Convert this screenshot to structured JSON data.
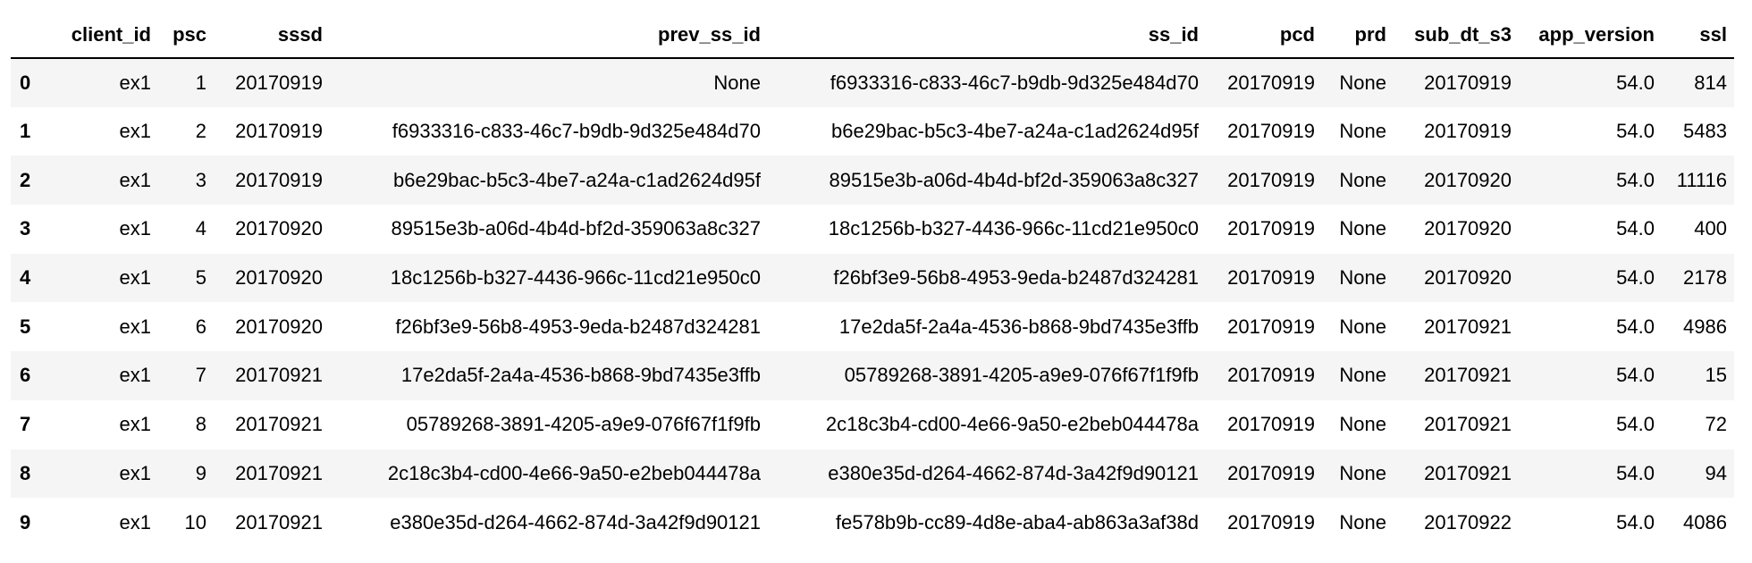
{
  "table": {
    "columns": [
      "",
      "client_id",
      "psc",
      "sssd",
      "prev_ss_id",
      "ss_id",
      "pcd",
      "prd",
      "sub_dt_s3",
      "app_version",
      "ssl"
    ],
    "rows": [
      {
        "index": "0",
        "cells": [
          "ex1",
          "1",
          "20170919",
          "None",
          "f6933316-c833-46c7-b9db-9d325e484d70",
          "20170919",
          "None",
          "20170919",
          "54.0",
          "814"
        ]
      },
      {
        "index": "1",
        "cells": [
          "ex1",
          "2",
          "20170919",
          "f6933316-c833-46c7-b9db-9d325e484d70",
          "b6e29bac-b5c3-4be7-a24a-c1ad2624d95f",
          "20170919",
          "None",
          "20170919",
          "54.0",
          "5483"
        ]
      },
      {
        "index": "2",
        "cells": [
          "ex1",
          "3",
          "20170919",
          "b6e29bac-b5c3-4be7-a24a-c1ad2624d95f",
          "89515e3b-a06d-4b4d-bf2d-359063a8c327",
          "20170919",
          "None",
          "20170920",
          "54.0",
          "11116"
        ]
      },
      {
        "index": "3",
        "cells": [
          "ex1",
          "4",
          "20170920",
          "89515e3b-a06d-4b4d-bf2d-359063a8c327",
          "18c1256b-b327-4436-966c-11cd21e950c0",
          "20170919",
          "None",
          "20170920",
          "54.0",
          "400"
        ]
      },
      {
        "index": "4",
        "cells": [
          "ex1",
          "5",
          "20170920",
          "18c1256b-b327-4436-966c-11cd21e950c0",
          "f26bf3e9-56b8-4953-9eda-b2487d324281",
          "20170919",
          "None",
          "20170920",
          "54.0",
          "2178"
        ]
      },
      {
        "index": "5",
        "cells": [
          "ex1",
          "6",
          "20170920",
          "f26bf3e9-56b8-4953-9eda-b2487d324281",
          "17e2da5f-2a4a-4536-b868-9bd7435e3ffb",
          "20170919",
          "None",
          "20170921",
          "54.0",
          "4986"
        ]
      },
      {
        "index": "6",
        "cells": [
          "ex1",
          "7",
          "20170921",
          "17e2da5f-2a4a-4536-b868-9bd7435e3ffb",
          "05789268-3891-4205-a9e9-076f67f1f9fb",
          "20170919",
          "None",
          "20170921",
          "54.0",
          "15"
        ]
      },
      {
        "index": "7",
        "cells": [
          "ex1",
          "8",
          "20170921",
          "05789268-3891-4205-a9e9-076f67f1f9fb",
          "2c18c3b4-cd00-4e66-9a50-e2beb044478a",
          "20170919",
          "None",
          "20170921",
          "54.0",
          "72"
        ]
      },
      {
        "index": "8",
        "cells": [
          "ex1",
          "9",
          "20170921",
          "2c18c3b4-cd00-4e66-9a50-e2beb044478a",
          "e380e35d-d264-4662-874d-3a42f9d90121",
          "20170919",
          "None",
          "20170921",
          "54.0",
          "94"
        ]
      },
      {
        "index": "9",
        "cells": [
          "ex1",
          "10",
          "20170921",
          "e380e35d-d264-4662-874d-3a42f9d90121",
          "fe578b9b-cc89-4d8e-aba4-ab863a3af38d",
          "20170919",
          "None",
          "20170922",
          "54.0",
          "4086"
        ]
      }
    ]
  },
  "colors": {
    "odd_row": "#f5f5f5",
    "even_row": "#ffffff",
    "header_rule": "#000000",
    "text": "#000000"
  }
}
